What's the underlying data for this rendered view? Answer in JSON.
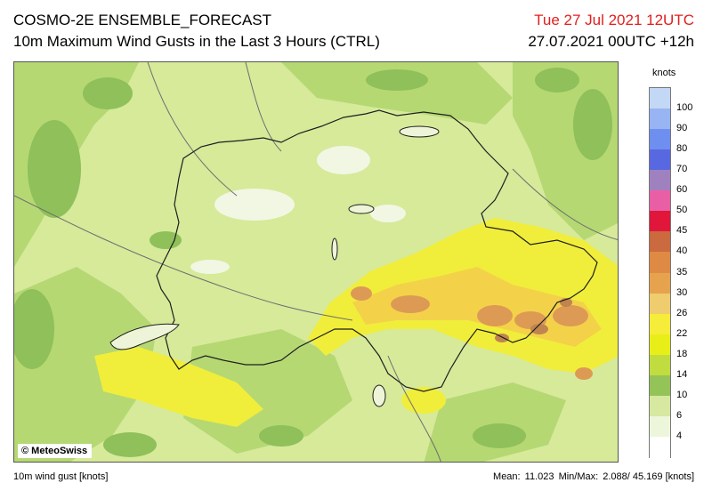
{
  "header": {
    "model_title": "COSMO-2E ENSEMBLE_FORECAST",
    "field_title": "10m Maximum Wind Gusts in the Last 3 Hours (CTRL)",
    "valid_time": "Tue 27 Jul 2021 12UTC",
    "run_time": "27.07.2021 00UTC +12h",
    "valid_time_color": "#e0201e"
  },
  "map": {
    "credit": "© MeteoSwiss",
    "dominant_colors": {
      "calm_white": "#f2f7e4",
      "light": "#d8ec9c",
      "mid": "#b8da74",
      "green": "#8fc05a",
      "yellow": "#f1ef3c",
      "amber": "#f4d64a",
      "orange": "#e6a45a",
      "brown": "#c98d5a",
      "border_line": "#1e1e1e",
      "river_line": "#6d6d6d"
    }
  },
  "legend": {
    "unit": "knots",
    "labels": [
      "100",
      "90",
      "80",
      "70",
      "60",
      "50",
      "45",
      "40",
      "35",
      "30",
      "26",
      "22",
      "18",
      "14",
      "10",
      "6",
      "4"
    ],
    "colors": [
      "#c2d8f5",
      "#98b4f2",
      "#6f8ff0",
      "#5868e0",
      "#a081c0",
      "#e95fa5",
      "#e0163a",
      "#cb693f",
      "#df8a44",
      "#e7a24d",
      "#efcc6d",
      "#f6ec3a",
      "#e8ef18",
      "#c0dc3e",
      "#94c357",
      "#d7e8a0",
      "#edf5da",
      "#ffffff"
    ]
  },
  "footer": {
    "variable": "10m wind gust [knots]",
    "mean_label": "Mean:",
    "mean_value": "11.023",
    "minmax_label": "Min/Max:",
    "minmax_value": "2.088/ 45.169 [knots]"
  }
}
